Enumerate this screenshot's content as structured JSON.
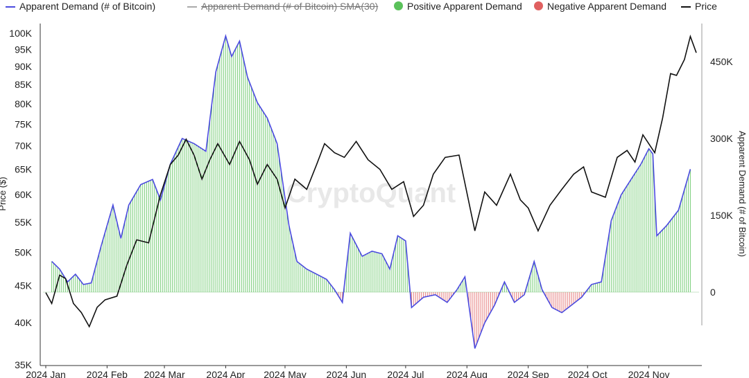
{
  "legend": {
    "items": [
      {
        "label": "Apparent Demand (# of Bitcoin)",
        "color": "#4a4adf",
        "swatch": "line",
        "struck": false
      },
      {
        "label": "Apparent Demand (# of Bitcoin) SMA(30)",
        "color": "#aaaaaa",
        "swatch": "line",
        "struck": true
      },
      {
        "label": "Positive Apparent Demand",
        "color": "#5ac15a",
        "swatch": "dot",
        "struck": false
      },
      {
        "label": "Negative Apparent Demand",
        "color": "#e06060",
        "swatch": "dot",
        "struck": false
      },
      {
        "label": "Price",
        "color": "#111111",
        "swatch": "line",
        "struck": false
      }
    ]
  },
  "watermark": "CryptoQuant",
  "chart_data": {
    "type": "line",
    "y_left_label": "Price ($)",
    "y_right_label": "Apparent Demand (# of Bitcoin)",
    "y_left_scale": "log",
    "y_left_ticks": [
      "100K",
      "95K",
      "90K",
      "85K",
      "80K",
      "75K",
      "70K",
      "65K",
      "60K",
      "55K",
      "50K",
      "45K",
      "40K",
      "35K"
    ],
    "y_left_tick_values": [
      100000,
      95000,
      90000,
      85000,
      80000,
      75000,
      70000,
      65000,
      60000,
      55000,
      50000,
      45000,
      40000,
      35000
    ],
    "y_right_ticks": [
      "450K",
      "300K",
      "150K",
      "0"
    ],
    "y_right_tick_values": [
      450000,
      300000,
      150000,
      0
    ],
    "y_right_range": [
      -150000,
      520000
    ],
    "x_ticks": [
      "2024 Jan",
      "2024 Feb",
      "2024 Mar",
      "2024 Apr",
      "2024 May",
      "2024 Jun",
      "2024 Jul",
      "2024 Aug",
      "2024 Sep",
      "2024 Oct",
      "2024 Nov"
    ],
    "x_range": [
      "2024-01-01",
      "2024-11-25"
    ],
    "colors": {
      "demand_line": "#4a4adf",
      "positive": "#5ac15a",
      "negative": "#e06060",
      "price": "#111111"
    },
    "series": [
      {
        "name": "Apparent Demand (# of Bitcoin)",
        "points": [
          [
            "2024-01-04",
            60000
          ],
          [
            "2024-01-08",
            45000
          ],
          [
            "2024-01-12",
            20000
          ],
          [
            "2024-01-16",
            35000
          ],
          [
            "2024-01-20",
            15000
          ],
          [
            "2024-01-24",
            18000
          ],
          [
            "2024-01-29",
            90000
          ],
          [
            "2024-02-04",
            170000
          ],
          [
            "2024-02-08",
            105000
          ],
          [
            "2024-02-12",
            170000
          ],
          [
            "2024-02-18",
            210000
          ],
          [
            "2024-02-24",
            220000
          ],
          [
            "2024-02-28",
            180000
          ],
          [
            "2024-03-04",
            250000
          ],
          [
            "2024-03-10",
            300000
          ],
          [
            "2024-03-16",
            290000
          ],
          [
            "2024-03-22",
            275000
          ],
          [
            "2024-03-27",
            430000
          ],
          [
            "2024-04-01",
            500000
          ],
          [
            "2024-04-04",
            460000
          ],
          [
            "2024-04-08",
            490000
          ],
          [
            "2024-04-12",
            420000
          ],
          [
            "2024-04-17",
            370000
          ],
          [
            "2024-04-22",
            340000
          ],
          [
            "2024-04-27",
            290000
          ],
          [
            "2024-05-03",
            130000
          ],
          [
            "2024-05-07",
            60000
          ],
          [
            "2024-05-12",
            45000
          ],
          [
            "2024-05-17",
            35000
          ],
          [
            "2024-05-22",
            25000
          ],
          [
            "2024-05-26",
            5000
          ],
          [
            "2024-05-30",
            -20000
          ],
          [
            "2024-06-03",
            115000
          ],
          [
            "2024-06-09",
            70000
          ],
          [
            "2024-06-14",
            80000
          ],
          [
            "2024-06-19",
            75000
          ],
          [
            "2024-06-23",
            45000
          ],
          [
            "2024-06-27",
            110000
          ],
          [
            "2024-07-01",
            100000
          ],
          [
            "2024-07-04",
            -30000
          ],
          [
            "2024-07-10",
            -10000
          ],
          [
            "2024-07-16",
            -5000
          ],
          [
            "2024-07-22",
            -20000
          ],
          [
            "2024-07-27",
            5000
          ],
          [
            "2024-07-31",
            30000
          ],
          [
            "2024-08-05",
            -110000
          ],
          [
            "2024-08-10",
            -60000
          ],
          [
            "2024-08-15",
            -25000
          ],
          [
            "2024-08-20",
            20000
          ],
          [
            "2024-08-25",
            -20000
          ],
          [
            "2024-08-30",
            -5000
          ],
          [
            "2024-09-04",
            60000
          ],
          [
            "2024-09-08",
            5000
          ],
          [
            "2024-09-13",
            -30000
          ],
          [
            "2024-09-18",
            -40000
          ],
          [
            "2024-09-23",
            -25000
          ],
          [
            "2024-09-28",
            -10000
          ],
          [
            "2024-10-03",
            15000
          ],
          [
            "2024-10-08",
            20000
          ],
          [
            "2024-10-13",
            140000
          ],
          [
            "2024-10-18",
            190000
          ],
          [
            "2024-10-23",
            220000
          ],
          [
            "2024-10-28",
            250000
          ],
          [
            "2024-11-01",
            280000
          ],
          [
            "2024-11-03",
            270000
          ],
          [
            "2024-11-05",
            110000
          ],
          [
            "2024-11-10",
            130000
          ],
          [
            "2024-11-16",
            160000
          ],
          [
            "2024-11-22",
            240000
          ]
        ]
      },
      {
        "name": "Price",
        "points": [
          [
            "2024-01-01",
            44000
          ],
          [
            "2024-01-04",
            42500
          ],
          [
            "2024-01-08",
            46500
          ],
          [
            "2024-01-11",
            46000
          ],
          [
            "2024-01-15",
            42500
          ],
          [
            "2024-01-19",
            41300
          ],
          [
            "2024-01-23",
            39500
          ],
          [
            "2024-01-27",
            42000
          ],
          [
            "2024-01-31",
            43000
          ],
          [
            "2024-02-06",
            43500
          ],
          [
            "2024-02-11",
            48000
          ],
          [
            "2024-02-16",
            52000
          ],
          [
            "2024-02-22",
            51500
          ],
          [
            "2024-02-28",
            60000
          ],
          [
            "2024-03-04",
            66000
          ],
          [
            "2024-03-08",
            68000
          ],
          [
            "2024-03-12",
            71500
          ],
          [
            "2024-03-16",
            68000
          ],
          [
            "2024-03-20",
            63000
          ],
          [
            "2024-03-24",
            67000
          ],
          [
            "2024-03-28",
            70500
          ],
          [
            "2024-04-03",
            66000
          ],
          [
            "2024-04-08",
            71000
          ],
          [
            "2024-04-13",
            67000
          ],
          [
            "2024-04-17",
            62000
          ],
          [
            "2024-04-22",
            66000
          ],
          [
            "2024-04-27",
            63000
          ],
          [
            "2024-05-01",
            57500
          ],
          [
            "2024-05-06",
            63000
          ],
          [
            "2024-05-12",
            61000
          ],
          [
            "2024-05-17",
            66000
          ],
          [
            "2024-05-21",
            70500
          ],
          [
            "2024-05-26",
            68500
          ],
          [
            "2024-05-31",
            67500
          ],
          [
            "2024-06-06",
            71000
          ],
          [
            "2024-06-12",
            67000
          ],
          [
            "2024-06-18",
            65000
          ],
          [
            "2024-06-24",
            61000
          ],
          [
            "2024-06-30",
            62500
          ],
          [
            "2024-07-05",
            56000
          ],
          [
            "2024-07-10",
            58000
          ],
          [
            "2024-07-15",
            64000
          ],
          [
            "2024-07-21",
            67500
          ],
          [
            "2024-07-28",
            68000
          ],
          [
            "2024-08-05",
            53500
          ],
          [
            "2024-08-10",
            60500
          ],
          [
            "2024-08-16",
            58000
          ],
          [
            "2024-08-23",
            64000
          ],
          [
            "2024-08-28",
            59000
          ],
          [
            "2024-09-01",
            57500
          ],
          [
            "2024-09-06",
            53500
          ],
          [
            "2024-09-12",
            58000
          ],
          [
            "2024-09-18",
            61000
          ],
          [
            "2024-09-24",
            64000
          ],
          [
            "2024-09-29",
            65500
          ],
          [
            "2024-10-03",
            60500
          ],
          [
            "2024-10-10",
            59500
          ],
          [
            "2024-10-16",
            67500
          ],
          [
            "2024-10-21",
            69000
          ],
          [
            "2024-10-25",
            66500
          ],
          [
            "2024-10-29",
            72500
          ],
          [
            "2024-11-04",
            68500
          ],
          [
            "2024-11-08",
            76500
          ],
          [
            "2024-11-12",
            88000
          ],
          [
            "2024-11-15",
            87500
          ],
          [
            "2024-11-19",
            92000
          ],
          [
            "2024-11-22",
            99000
          ],
          [
            "2024-11-25",
            94000
          ]
        ]
      }
    ]
  }
}
